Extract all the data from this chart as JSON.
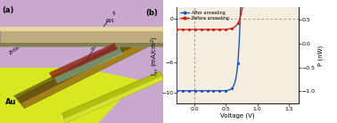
{
  "fig_width": 3.78,
  "fig_height": 1.38,
  "dpi": 100,
  "panel_b": {
    "xlabel": "Voltage (V)",
    "ylabel_left": "J$_{sc}$ (mA/cm$^{2}$)",
    "ylabel_right": "P (nW)",
    "xlim": [
      -0.28,
      1.65
    ],
    "ylim_left": [
      -11.5,
      1.5
    ],
    "ylim_right": [
      -1.25,
      0.75
    ],
    "yticks_left": [
      0,
      -6,
      -10
    ],
    "yticks_right": [
      0.5,
      0.0,
      -0.5,
      -1.0
    ],
    "xticks": [
      0.0,
      0.5,
      1.0,
      1.5
    ],
    "bg_color": "#f5ede0",
    "grid_color": "#888888",
    "after_color": "#2255bb",
    "before_color": "#cc2222",
    "power_color": "#888888"
  },
  "panel_a": {
    "bg_color": "#c8a8cc",
    "nw_color": "#7a6010",
    "nw_highlight": "#c8a020",
    "electrode_color": "#c0aa80",
    "au_color": "#d8e820",
    "ti_color": "#c8c0a0",
    "label_color": "#111111"
  }
}
